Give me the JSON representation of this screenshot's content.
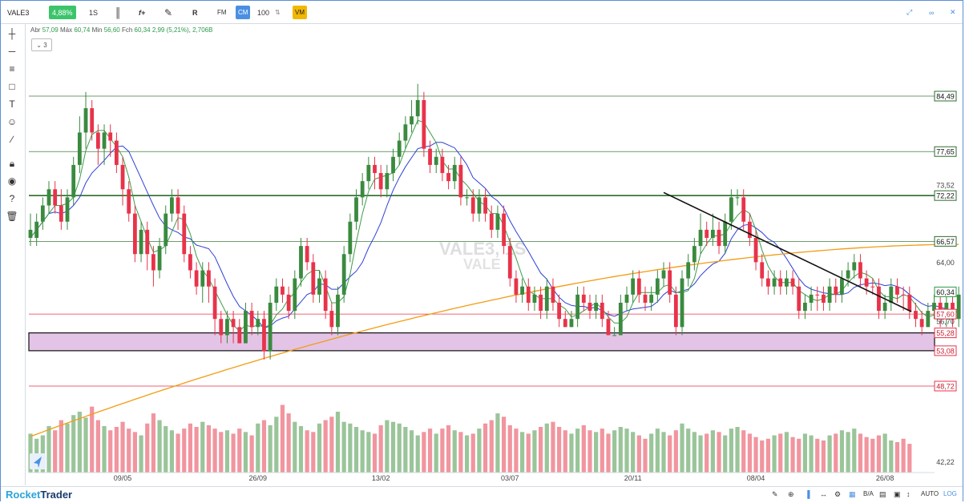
{
  "topbar": {
    "symbol": "VALE3",
    "change": "4,88%",
    "timeframe": "1S",
    "formula_label": "f+",
    "r_label": "R",
    "fm_label": "FM",
    "cm_label": "CM",
    "quantity": "100",
    "vm_label": "VM"
  },
  "ohlc": {
    "abr_label": "Abr",
    "abr": "57,09",
    "max_label": "Máx",
    "max": "60,74",
    "min_label": "Min",
    "min": "56,60",
    "fch_label": "Fch",
    "fch": "60,34",
    "chg": "2,99 (5,21%)",
    "vol": "2,706B"
  },
  "collapse_label": "3",
  "watermark": {
    "line1": "VALE3, 1S",
    "line2": "VALE"
  },
  "bottombar": {
    "brand_a": "Rocket",
    "brand_b": "Trader",
    "auto": "AUTO",
    "log": "LOG",
    "ba": "B/A"
  },
  "colors": {
    "up": "#3a8a3f",
    "down": "#e8334a",
    "ma_fast": "#3e9c4a",
    "ma_mid": "#2d3fd6",
    "ma_slow": "#f39c12",
    "zone": "#e3c4e6",
    "accent": "#4a90e2"
  },
  "chart_data": {
    "type": "candlestick",
    "price_labels": [
      {
        "value": 84.49,
        "text": "84,49",
        "style": "boxed"
      },
      {
        "value": 77.65,
        "text": "77,65",
        "style": "boxed"
      },
      {
        "value": 73.52,
        "text": "73,52",
        "style": "plain"
      },
      {
        "value": 72.22,
        "text": "72,22",
        "style": "boxed"
      },
      {
        "value": 66.57,
        "text": "66,57",
        "style": "boxed"
      },
      {
        "value": 64.0,
        "text": "64,00",
        "style": "plain"
      },
      {
        "value": 60.34,
        "text": "60,34",
        "style": "green"
      },
      {
        "value": 57.6,
        "text": "57,60",
        "style": "red"
      },
      {
        "value": 56.7,
        "text": "56,70",
        "style": "plain"
      },
      {
        "value": 55.28,
        "text": "55,28",
        "style": "red"
      },
      {
        "value": 53.08,
        "text": "53,08",
        "style": "red"
      },
      {
        "value": 48.72,
        "text": "48,72",
        "style": "red"
      }
    ],
    "volume_label": "42,22",
    "x_ticks": [
      {
        "index": 15,
        "label": "09/05"
      },
      {
        "index": 37,
        "label": "26/09"
      },
      {
        "index": 57,
        "label": "13/02"
      },
      {
        "index": 78,
        "label": "03/07"
      },
      {
        "index": 98,
        "label": "20/11"
      },
      {
        "index": 118,
        "label": "08/04"
      },
      {
        "index": 139,
        "label": "26/08"
      }
    ],
    "hlines": [
      {
        "value": 84.49,
        "color": "#3e7d3e",
        "width": 0.8
      },
      {
        "value": 77.65,
        "color": "#3e7d3e",
        "width": 0.8
      },
      {
        "value": 72.22,
        "color": "#2e6b2e",
        "width": 1.6
      },
      {
        "value": 66.57,
        "color": "#3e7d3e",
        "width": 0.8
      },
      {
        "value": 57.6,
        "color": "#e8334a",
        "width": 0.8
      },
      {
        "value": 48.72,
        "color": "#e8334a",
        "width": 0.8
      }
    ],
    "zone": {
      "from": 53.08,
      "to": 55.28
    },
    "trendline": {
      "from": {
        "index": 103,
        "value": 72.6
      },
      "to": {
        "index": 142,
        "value": 57.9
      }
    },
    "ylim": [
      42.2,
      87.0
    ],
    "candles": [
      [
        68,
        67,
        70,
        66,
        1
      ],
      [
        67,
        69,
        70,
        66,
        1
      ],
      [
        69,
        71,
        72,
        68,
        1
      ],
      [
        71,
        73,
        74,
        70,
        1
      ],
      [
        73,
        71,
        74,
        70,
        0
      ],
      [
        71,
        69,
        73,
        68,
        0
      ],
      [
        69,
        72,
        73,
        68,
        1
      ],
      [
        72,
        76,
        77,
        71,
        1
      ],
      [
        76,
        80,
        82,
        75,
        1
      ],
      [
        80,
        83,
        85,
        78,
        1
      ],
      [
        83,
        80,
        84,
        79,
        0
      ],
      [
        80,
        78,
        81,
        76,
        0
      ],
      [
        78,
        80,
        81,
        76,
        1
      ],
      [
        80,
        79,
        81,
        77,
        0
      ],
      [
        79,
        76,
        80,
        75,
        0
      ],
      [
        76,
        73,
        77,
        71,
        0
      ],
      [
        73,
        70,
        74,
        69,
        0
      ],
      [
        70,
        65,
        71,
        64,
        0
      ],
      [
        65,
        68,
        69,
        64,
        1
      ],
      [
        68,
        65,
        69,
        63,
        0
      ],
      [
        65,
        63,
        66,
        61,
        0
      ],
      [
        63,
        66,
        67,
        62,
        1
      ],
      [
        66,
        70,
        71,
        65,
        1
      ],
      [
        70,
        72,
        73,
        69,
        1
      ],
      [
        72,
        70,
        73,
        68,
        0
      ],
      [
        70,
        65,
        71,
        64,
        0
      ],
      [
        65,
        63,
        66,
        62,
        0
      ],
      [
        63,
        61,
        64,
        60,
        0
      ],
      [
        61,
        63,
        64,
        59,
        1
      ],
      [
        63,
        61,
        64,
        59,
        0
      ],
      [
        61,
        57,
        62,
        55,
        0
      ],
      [
        57,
        55,
        58,
        54,
        0
      ],
      [
        55,
        57,
        58,
        54,
        1
      ],
      [
        57,
        56,
        58,
        54,
        0
      ],
      [
        56,
        54,
        57,
        54,
        0
      ],
      [
        54,
        58,
        59,
        54,
        1
      ],
      [
        58,
        56,
        59,
        55,
        0
      ],
      [
        56,
        57,
        58,
        55,
        1
      ],
      [
        57,
        53,
        58,
        52,
        0
      ],
      [
        53,
        59,
        60,
        52,
        1
      ],
      [
        59,
        61,
        62,
        58,
        1
      ],
      [
        61,
        60,
        62,
        59,
        0
      ],
      [
        60,
        58,
        61,
        57,
        0
      ],
      [
        58,
        62,
        63,
        57,
        1
      ],
      [
        62,
        66,
        67,
        61,
        1
      ],
      [
        66,
        64,
        67,
        63,
        0
      ],
      [
        64,
        60,
        65,
        59,
        0
      ],
      [
        60,
        62,
        63,
        59,
        1
      ],
      [
        62,
        58,
        63,
        57,
        0
      ],
      [
        58,
        56,
        59,
        55,
        0
      ],
      [
        56,
        60,
        61,
        55,
        1
      ],
      [
        60,
        65,
        66,
        59,
        1
      ],
      [
        65,
        69,
        70,
        64,
        1
      ],
      [
        69,
        72,
        73,
        68,
        1
      ],
      [
        72,
        74,
        75,
        71,
        1
      ],
      [
        74,
        76,
        77,
        73,
        1
      ],
      [
        76,
        75,
        77,
        73,
        0
      ],
      [
        75,
        73,
        76,
        72,
        0
      ],
      [
        73,
        75,
        76,
        72,
        1
      ],
      [
        75,
        77,
        78,
        74,
        1
      ],
      [
        77,
        79,
        80,
        76,
        1
      ],
      [
        79,
        81,
        82,
        78,
        1
      ],
      [
        81,
        82,
        84,
        80,
        1
      ],
      [
        82,
        84,
        86,
        81,
        1
      ],
      [
        84,
        78,
        85,
        77,
        0
      ],
      [
        78,
        76,
        79,
        75,
        0
      ],
      [
        76,
        77,
        78,
        75,
        1
      ],
      [
        77,
        75,
        78,
        74,
        0
      ],
      [
        75,
        74,
        76,
        73,
        0
      ],
      [
        74,
        76,
        77,
        73,
        1
      ],
      [
        76,
        72,
        77,
        71,
        0
      ],
      [
        72,
        72,
        73,
        71,
        1
      ],
      [
        72,
        70,
        73,
        69,
        0
      ],
      [
        70,
        72,
        73,
        69,
        1
      ],
      [
        72,
        70,
        73,
        69,
        0
      ],
      [
        70,
        68,
        71,
        67,
        0
      ],
      [
        68,
        70,
        71,
        67,
        1
      ],
      [
        70,
        66,
        71,
        65,
        0
      ],
      [
        66,
        62,
        67,
        61,
        0
      ],
      [
        62,
        60,
        63,
        59,
        0
      ],
      [
        60,
        61,
        62,
        59,
        1
      ],
      [
        61,
        59,
        62,
        58,
        0
      ],
      [
        59,
        60,
        61,
        58,
        1
      ],
      [
        60,
        58,
        61,
        57,
        0
      ],
      [
        58,
        61,
        62,
        57,
        1
      ],
      [
        61,
        59,
        62,
        58,
        0
      ],
      [
        59,
        57,
        60,
        56,
        0
      ],
      [
        57,
        56,
        58,
        56,
        0
      ],
      [
        56,
        57,
        58,
        56,
        1
      ],
      [
        57,
        60,
        61,
        56,
        1
      ],
      [
        60,
        59,
        61,
        58,
        0
      ],
      [
        59,
        58,
        60,
        57,
        0
      ],
      [
        58,
        59,
        60,
        57,
        1
      ],
      [
        59,
        57,
        60,
        56,
        0
      ],
      [
        57,
        55,
        58,
        55,
        0
      ],
      [
        55,
        55,
        56,
        55,
        1
      ],
      [
        55,
        59,
        60,
        55,
        1
      ],
      [
        59,
        60,
        61,
        58,
        1
      ],
      [
        60,
        62,
        63,
        59,
        1
      ],
      [
        62,
        60,
        63,
        59,
        0
      ],
      [
        60,
        59,
        61,
        58,
        0
      ],
      [
        59,
        60,
        61,
        58,
        1
      ],
      [
        60,
        62,
        63,
        59,
        1
      ],
      [
        62,
        63,
        64,
        61,
        1
      ],
      [
        63,
        60,
        64,
        59,
        0
      ],
      [
        60,
        56,
        61,
        55,
        0
      ],
      [
        56,
        62,
        63,
        55,
        1
      ],
      [
        62,
        64,
        65,
        61,
        1
      ],
      [
        64,
        66,
        67,
        63,
        1
      ],
      [
        66,
        68,
        70,
        65,
        1
      ],
      [
        68,
        67,
        69,
        66,
        0
      ],
      [
        67,
        68,
        70,
        66,
        1
      ],
      [
        68,
        66,
        69,
        65,
        0
      ],
      [
        66,
        69,
        70,
        65,
        1
      ],
      [
        69,
        72,
        73,
        68,
        1
      ],
      [
        72,
        72,
        73,
        71,
        1
      ],
      [
        72,
        69,
        73,
        68,
        0
      ],
      [
        69,
        67,
        70,
        66,
        0
      ],
      [
        67,
        64,
        68,
        63,
        0
      ],
      [
        64,
        62,
        65,
        61,
        0
      ],
      [
        62,
        61,
        63,
        60,
        0
      ],
      [
        61,
        62,
        63,
        60,
        1
      ],
      [
        62,
        61,
        63,
        60,
        0
      ],
      [
        61,
        62,
        63,
        60,
        1
      ],
      [
        62,
        61,
        63,
        60,
        0
      ],
      [
        61,
        58,
        62,
        57,
        0
      ],
      [
        58,
        59,
        60,
        57,
        1
      ],
      [
        59,
        60,
        61,
        58,
        1
      ],
      [
        60,
        60,
        61,
        58,
        0
      ],
      [
        60,
        59,
        61,
        58,
        0
      ],
      [
        59,
        61,
        62,
        58,
        1
      ],
      [
        61,
        60,
        62,
        59,
        0
      ],
      [
        60,
        62,
        63,
        59,
        1
      ],
      [
        62,
        63,
        64,
        61,
        1
      ],
      [
        63,
        64,
        65,
        62,
        1
      ],
      [
        64,
        62,
        65,
        61,
        0
      ],
      [
        62,
        61,
        63,
        60,
        0
      ],
      [
        61,
        61,
        62,
        60,
        0
      ],
      [
        61,
        58,
        62,
        57,
        0
      ],
      [
        58,
        59,
        60,
        57,
        1
      ],
      [
        59,
        61,
        62,
        58,
        1
      ],
      [
        61,
        60,
        62,
        59,
        0
      ],
      [
        60,
        60,
        61,
        58,
        0
      ],
      [
        60,
        58,
        61,
        57,
        0
      ],
      [
        58,
        57,
        59,
        56,
        0
      ],
      [
        57,
        56,
        58,
        55,
        0
      ],
      [
        56,
        58,
        59,
        56,
        1
      ],
      [
        58,
        59,
        60,
        57,
        1
      ],
      [
        59,
        57,
        60,
        56,
        0
      ],
      [
        57,
        59,
        60,
        56,
        1
      ],
      [
        59,
        57,
        60,
        56,
        0
      ],
      [
        57,
        60,
        61,
        56,
        1
      ]
    ],
    "volumes": [
      46,
      40,
      44,
      55,
      50,
      62,
      58,
      68,
      72,
      65,
      78,
      62,
      55,
      50,
      54,
      60,
      52,
      48,
      44,
      58,
      70,
      62,
      55,
      50,
      46,
      52,
      58,
      54,
      60,
      56,
      52,
      48,
      50,
      46,
      52,
      48,
      44,
      58,
      62,
      56,
      66,
      80,
      70,
      60,
      55,
      50,
      48,
      58,
      62,
      66,
      72,
      60,
      58,
      54,
      50,
      48,
      46,
      56,
      62,
      60,
      58,
      54,
      50,
      44,
      48,
      52,
      46,
      52,
      56,
      50,
      48,
      44,
      46,
      52,
      58,
      62,
      70,
      66,
      56,
      52,
      48,
      46,
      50,
      54,
      58,
      60,
      54,
      50,
      46,
      52,
      56,
      50,
      48,
      52,
      46,
      50,
      54,
      52,
      48,
      44,
      40,
      46,
      52,
      48,
      44,
      50,
      58,
      52,
      48,
      44,
      46,
      50,
      48,
      44,
      52,
      54,
      50,
      46,
      42,
      38,
      40,
      44,
      46,
      48,
      42,
      40,
      46,
      44,
      40,
      38,
      44,
      46,
      50,
      48,
      52,
      46,
      42,
      40,
      44,
      46,
      38,
      36,
      40,
      34
    ]
  }
}
